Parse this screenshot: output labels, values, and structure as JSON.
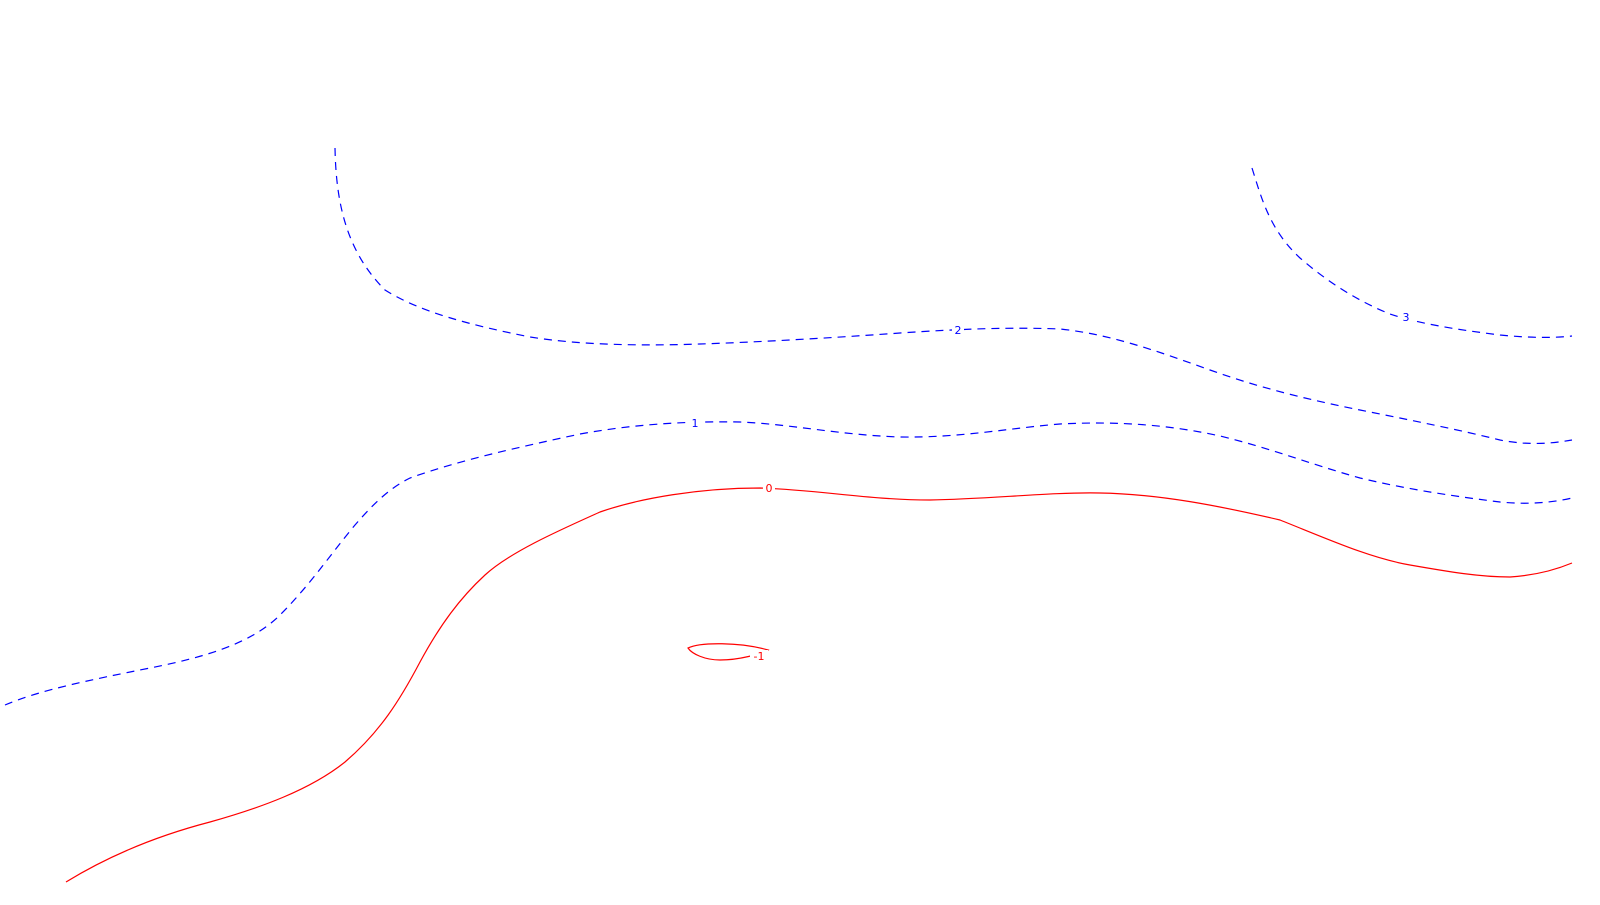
{
  "colors": {
    "positive": "#0000ff",
    "zero_and_negative": "#ff0000",
    "background": "#ffffff"
  },
  "contours": [
    {
      "id": "c3",
      "level": "3",
      "style": "dashed",
      "color": "#0000ff"
    },
    {
      "id": "c2",
      "level": "2",
      "style": "dashed",
      "color": "#0000ff"
    },
    {
      "id": "c1",
      "level": "1",
      "style": "dashed",
      "color": "#0000ff"
    },
    {
      "id": "c0",
      "level": "0",
      "style": "solid",
      "color": "#ff0000"
    },
    {
      "id": "cm1",
      "level": "-1",
      "style": "solid",
      "color": "#ff0000"
    }
  ]
}
